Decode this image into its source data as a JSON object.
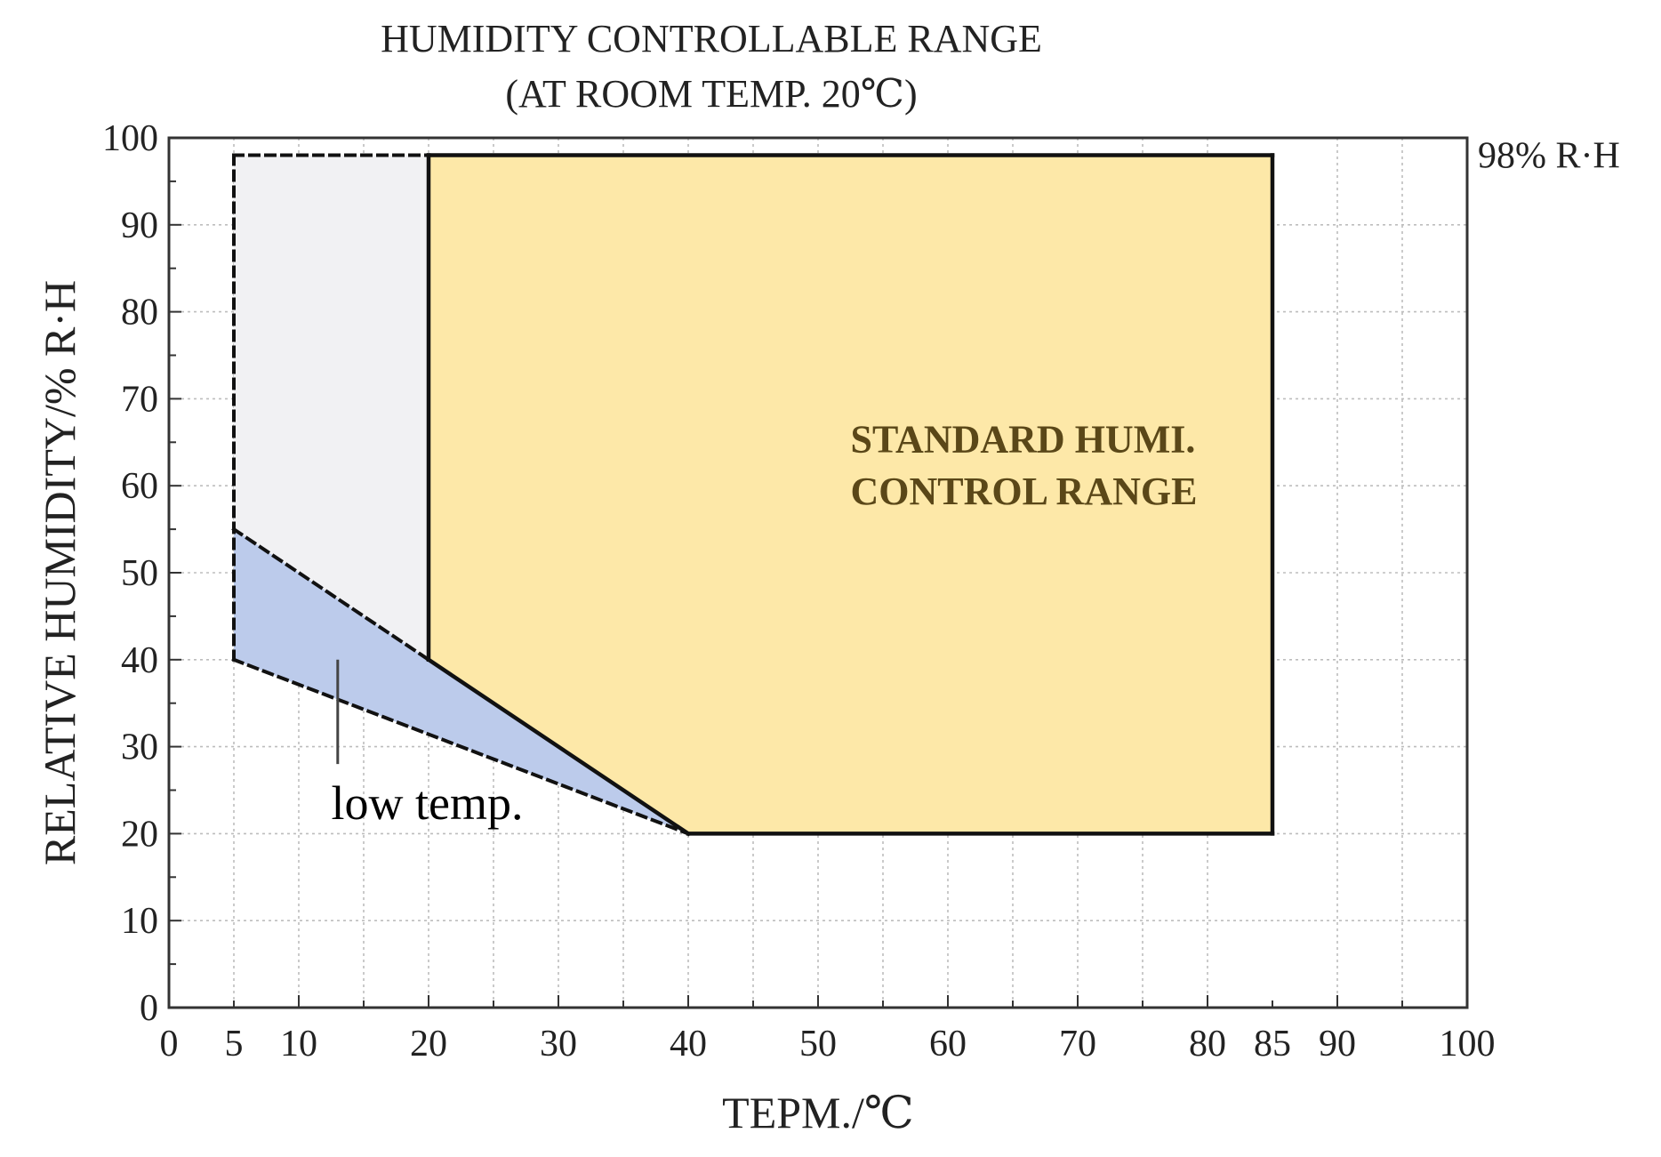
{
  "chart_data": {
    "type": "area",
    "title": "HUMIDITY CONTROLLABLE RANGE",
    "subtitle": "(AT ROOM TEMP. 20℃)",
    "xlabel": "TEPM./℃",
    "ylabel": "RELATIVE HUMIDITY/% R·H",
    "xlim": [
      0,
      100
    ],
    "ylim": [
      0,
      100
    ],
    "x_ticks": [
      0,
      5,
      10,
      20,
      30,
      40,
      50,
      60,
      70,
      80,
      85,
      90,
      100
    ],
    "y_ticks": [
      0,
      10,
      20,
      30,
      40,
      50,
      60,
      70,
      80,
      90,
      100
    ],
    "grid": true,
    "regions": [
      {
        "key": "extended",
        "fill": "#f1f1f3",
        "border": "dashed",
        "points": [
          [
            5,
            98
          ],
          [
            20,
            98
          ],
          [
            20,
            40
          ],
          [
            5,
            55
          ]
        ]
      },
      {
        "key": "low-temp",
        "fill": "#bccbeb",
        "border": "dashed",
        "points": [
          [
            5,
            55
          ],
          [
            20,
            40
          ],
          [
            40,
            20
          ],
          [
            5,
            40
          ]
        ]
      },
      {
        "key": "standard",
        "name": "STANDARD HUMI. CONTROL RANGE",
        "fill": "#fde8a8",
        "border": "solid",
        "points": [
          [
            20,
            98
          ],
          [
            85,
            98
          ],
          [
            85,
            20
          ],
          [
            40,
            20
          ],
          [
            20,
            40
          ]
        ]
      }
    ],
    "annotations": [
      {
        "key": "standard-label-1",
        "text": "STANDARD HUMI.",
        "x": 52.5,
        "y": 65.5
      },
      {
        "key": "standard-label-2",
        "text": "CONTROL RANGE",
        "x": 52.5,
        "y": 59.5
      },
      {
        "key": "low-temp-label",
        "text": "low temp.",
        "x": 12.5,
        "y": 23.5
      },
      {
        "key": "max-humidity-label",
        "text": "98% R·H",
        "y": 98
      }
    ],
    "low_temp_pointer": {
      "x": 13,
      "y_top": 40,
      "y_bottom": 28
    },
    "colors": {
      "standard": "#fde8a8",
      "low_temp": "#bccbeb",
      "extended": "#f1f1f3",
      "grid": "#bdbdbd",
      "axis": "#333333"
    }
  }
}
